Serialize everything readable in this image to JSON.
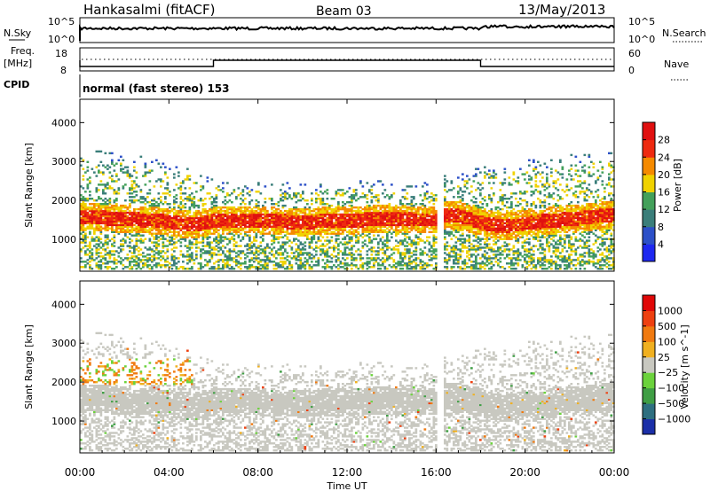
{
  "header": {
    "station": "Hankasalmi (fitACF)",
    "beam": "Beam 03",
    "date": "13/May/2013"
  },
  "nsky_panel": {
    "label": "N.Sky",
    "right_label": "N.Search",
    "left_ticks": [
      "10^5",
      "10^0"
    ],
    "right_ticks": [
      "10^5",
      "10^0"
    ]
  },
  "freq_panel": {
    "label_line1": "Freq.",
    "label_line2": "[MHz]",
    "left_ticks": [
      "18",
      "8"
    ],
    "right_ticks": [
      "60",
      "0"
    ],
    "right_label": "Nave"
  },
  "cpid": {
    "label": "CPID",
    "text": "normal (fast stereo) 153"
  },
  "chart_data": [
    {
      "type": "heatmap",
      "name": "power",
      "ylabel": "Slant Range [km]",
      "ylim": [
        180,
        4600
      ],
      "yticks": [
        "1000",
        "2000",
        "3000",
        "4000"
      ],
      "colorbar": {
        "label": "Power [dB]",
        "ticks": [
          "4",
          "8",
          "12",
          "16",
          "20",
          "24",
          "28"
        ],
        "colors": [
          "#1e28f0",
          "#2c50c8",
          "#3a7e7a",
          "#43a05a",
          "#f0d200",
          "#f58a00",
          "#ee2a10",
          "#e01010"
        ]
      },
      "x_hours": [
        0,
        1,
        2,
        3,
        4,
        5,
        6,
        7,
        8,
        9,
        10,
        11,
        12,
        13,
        14,
        15,
        16,
        17,
        18,
        19,
        20,
        21,
        22,
        23,
        24
      ],
      "main_echo_center_km": [
        1550,
        1530,
        1500,
        1470,
        1420,
        1350,
        1450,
        1480,
        1470,
        1440,
        1420,
        1450,
        1450,
        1490,
        1520,
        1480,
        null,
        1590,
        1400,
        1300,
        1400,
        1450,
        1500,
        1560,
        1620
      ],
      "scatter_top_km": [
        3100,
        3000,
        2900,
        2850,
        2700,
        2600,
        2300,
        2250,
        2200,
        2200,
        2200,
        2250,
        2250,
        2250,
        2200,
        2200,
        null,
        2400,
        2700,
        2700,
        2800,
        2800,
        2900,
        2950,
        3000
      ]
    },
    {
      "type": "heatmap",
      "name": "velocity",
      "ylabel": "Slant Range [km]",
      "ylim": [
        180,
        4600
      ],
      "yticks": [
        "1000",
        "2000",
        "3000",
        "4000"
      ],
      "colorbar": {
        "label": "Velocity [m s^-1]",
        "ticks": [
          "1000",
          "500",
          "100",
          "25",
          "−25",
          "−100",
          "−500",
          "−1000"
        ],
        "colors": [
          "#1b2fa8",
          "#2e6f80",
          "#3f9e44",
          "#6bd23c",
          "#c8c8c0",
          "#f0b020",
          "#f07a10",
          "#ee4010",
          "#e00808"
        ]
      }
    }
  ],
  "xaxis": {
    "ticks": [
      "00:00",
      "04:00",
      "08:00",
      "12:00",
      "16:00",
      "20:00",
      "00:00"
    ],
    "label": "Time UT"
  }
}
